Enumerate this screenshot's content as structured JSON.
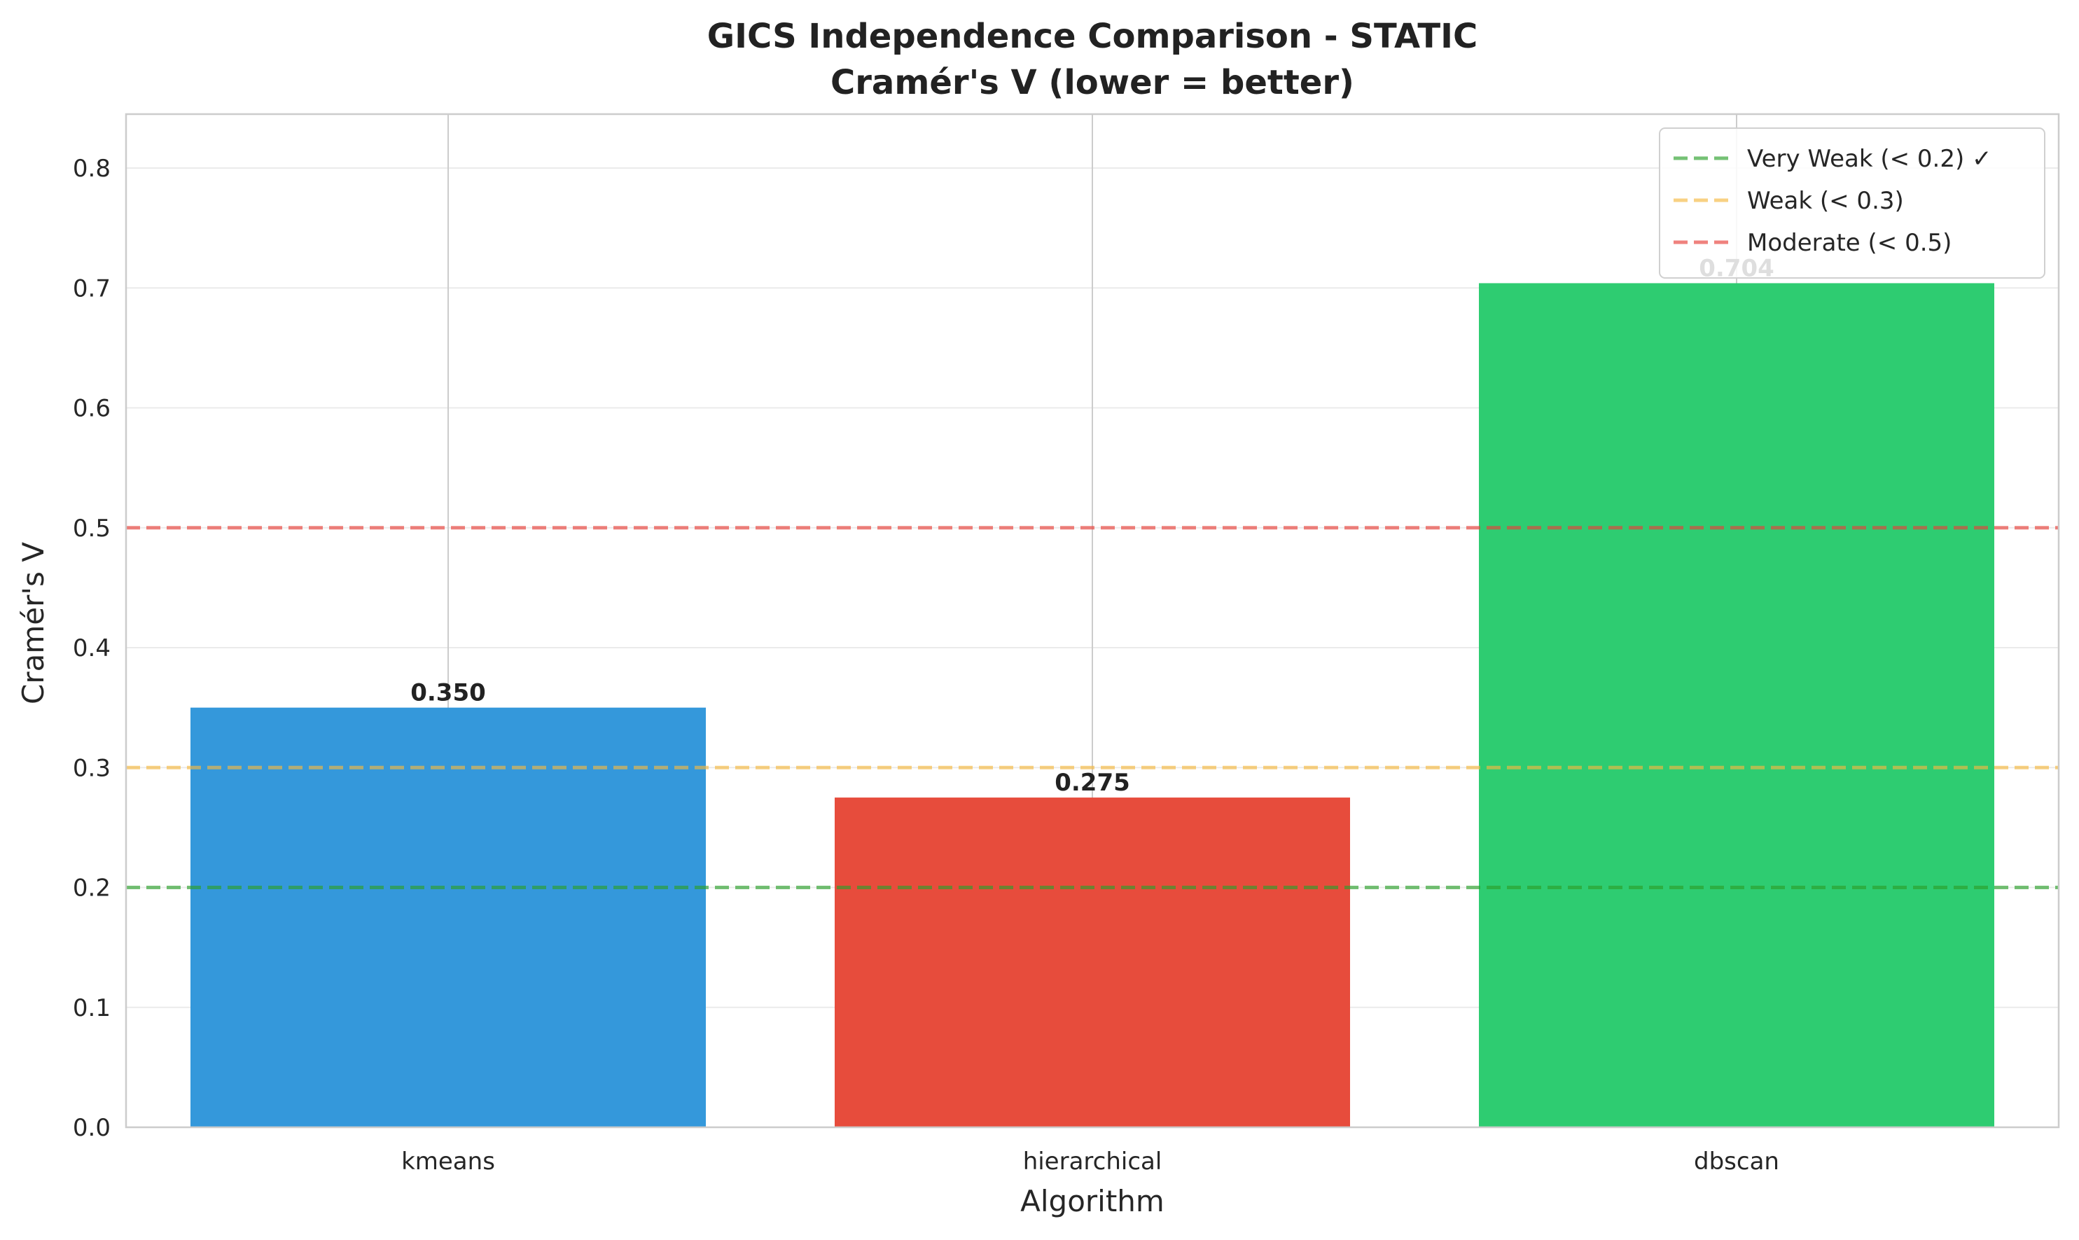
{
  "chart_data": {
    "type": "bar",
    "title": "GICS Independence Comparison - STATIC",
    "subtitle": "Cramér's V (lower = better)",
    "xlabel": "Algorithm",
    "ylabel": "Cramér's V",
    "categories": [
      "kmeans",
      "hierarchical",
      "dbscan"
    ],
    "values": [
      0.35,
      0.275,
      0.704
    ],
    "value_labels": [
      "0.350",
      "0.275",
      "0.704"
    ],
    "bar_colors": [
      "#3498db",
      "#e74c3c",
      "#2ecc71"
    ],
    "ylim": [
      0,
      0.845
    ],
    "yticks": [
      0.0,
      0.1,
      0.2,
      0.3,
      0.4,
      0.5,
      0.6,
      0.7,
      0.8
    ],
    "ytick_labels": [
      "0.0",
      "0.1",
      "0.2",
      "0.3",
      "0.4",
      "0.5",
      "0.6",
      "0.7",
      "0.8"
    ],
    "grid": true,
    "reference_lines": [
      {
        "label": "Very Weak (< 0.2) ✓",
        "value": 0.2,
        "color": "#2ca02c"
      },
      {
        "label": "Weak (< 0.3)",
        "value": 0.3,
        "color": "#f5b942"
      },
      {
        "label": "Moderate (< 0.5)",
        "value": 0.5,
        "color": "#e8403a"
      }
    ],
    "legend_placement": "top-right"
  }
}
